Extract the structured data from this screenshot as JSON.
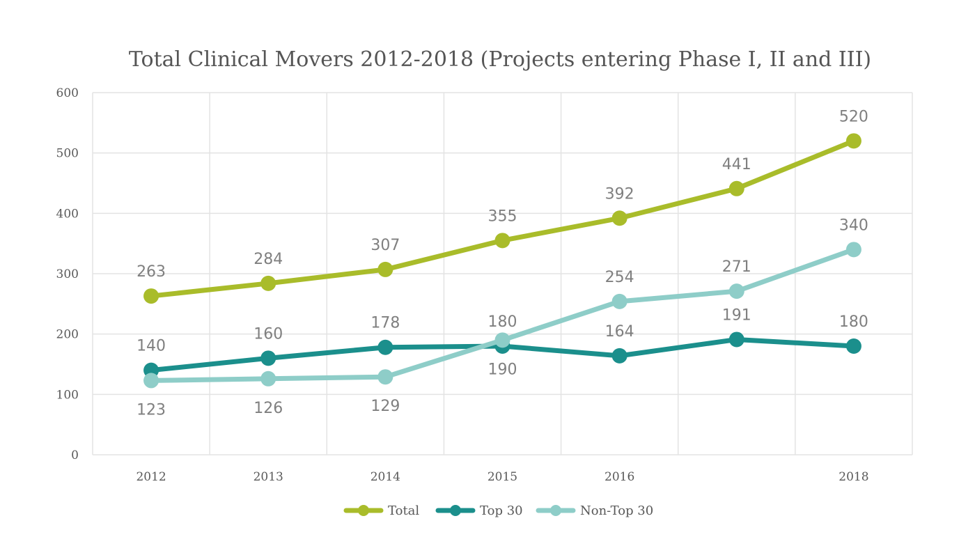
{
  "chart_data": {
    "type": "line",
    "title": "Total Clinical Movers 2012-2018 (Projects entering Phase I, II and III)",
    "xlabel": "",
    "ylabel": "",
    "categories": [
      "2012",
      "2013",
      "2014",
      "2015",
      "2016",
      "",
      "2018"
    ],
    "ylim": [
      0,
      600
    ],
    "yticks": [
      "0",
      "100",
      "200",
      "300",
      "400",
      "500",
      "600"
    ],
    "grid": true,
    "legend_position": "bottom",
    "series": [
      {
        "name": "Total",
        "color": "#a9bc2a",
        "values": [
          263,
          284,
          307,
          355,
          392,
          441,
          520
        ],
        "labels": [
          "263",
          "284",
          "307",
          "355",
          "392",
          "441",
          "520"
        ],
        "label_position": [
          "above",
          "above",
          "above",
          "above",
          "above",
          "above",
          "above"
        ]
      },
      {
        "name": "Top 30",
        "color": "#1b8f8c",
        "values": [
          140,
          160,
          178,
          180,
          164,
          191,
          180
        ],
        "labels": [
          "140",
          "160",
          "178",
          "180",
          "164",
          "191",
          "180"
        ],
        "label_position": [
          "above",
          "above",
          "above",
          "above",
          "above",
          "above",
          "above"
        ]
      },
      {
        "name": "Non-Top 30",
        "color": "#8ecdc8",
        "values": [
          123,
          126,
          129,
          190,
          254,
          271,
          340
        ],
        "labels": [
          "123",
          "126",
          "129",
          "190",
          "254",
          "271",
          "340"
        ],
        "label_position": [
          "below",
          "below",
          "below",
          "below",
          "above",
          "above",
          "above"
        ]
      }
    ]
  }
}
